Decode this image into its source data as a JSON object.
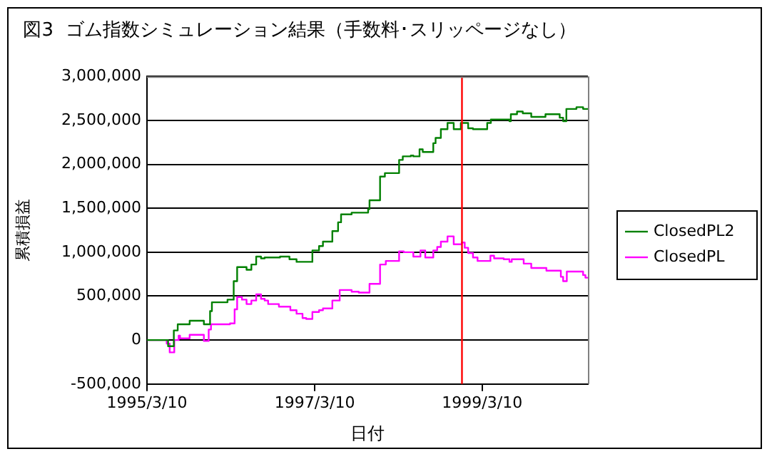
{
  "chart_data": {
    "type": "step",
    "title": "図3  ゴム指数シミュレーション結果（手数料･スリッページなし）",
    "xlabel": "日付",
    "ylabel": "累積損益",
    "xlim": [
      "1995-03-10",
      "2000-06-13"
    ],
    "xticks": [
      {
        "value": "1995-03-10",
        "label": "1995/3/10"
      },
      {
        "value": "1997-03-10",
        "label": "1997/3/10"
      },
      {
        "value": "1999-03-10",
        "label": "1999/3/10"
      }
    ],
    "ylim": [
      -500000,
      3000000
    ],
    "yticks": [
      {
        "value": -500000,
        "label": "-500,000"
      },
      {
        "value": 0,
        "label": "0"
      },
      {
        "value": 500000,
        "label": "500,000"
      },
      {
        "value": 1000000,
        "label": "1,000,000"
      },
      {
        "value": 1500000,
        "label": "1,500,000"
      },
      {
        "value": 2000000,
        "label": "2,000,000"
      },
      {
        "value": 2500000,
        "label": "2,500,000"
      },
      {
        "value": 3000000,
        "label": "3,000,000"
      }
    ],
    "grid": "y",
    "legend": "right",
    "marker": "none",
    "ref_lines": [
      {
        "axis": "x",
        "value": "1998-12-12",
        "color": "#ff0000"
      }
    ],
    "series": [
      {
        "name": "ClosedPL2",
        "color": "#008000",
        "x": [
          "1995-03-10",
          "1995-06-10",
          "1995-07-05",
          "1995-07-22",
          "1995-09-12",
          "1995-11-13",
          "1995-12-10",
          "1995-12-18",
          "1996-02-24",
          "1996-03-22",
          "1996-04-06",
          "1996-05-17",
          "1996-06-07",
          "1996-06-28",
          "1996-07-19",
          "1996-08-04",
          "1996-10-10",
          "1996-11-20",
          "1996-12-21",
          "1997-02-28",
          "1997-03-29",
          "1997-04-15",
          "1997-05-26",
          "1997-06-20",
          "1997-07-03",
          "1997-08-18",
          "1997-10-29",
          "1997-11-04",
          "1997-12-20",
          "1998-01-10",
          "1998-03-13",
          "1998-03-29",
          "1998-05-03",
          "1998-05-14",
          "1998-06-10",
          "1998-06-24",
          "1998-08-09",
          "1998-08-19",
          "1998-09-11",
          "1998-10-10",
          "1998-11-06",
          "1998-12-07",
          "1999-01-08",
          "1999-01-29",
          "1999-04-01",
          "1999-04-17",
          "1999-07-07",
          "1999-07-13",
          "1999-08-09",
          "1999-09-03",
          "1999-10-10",
          "1999-12-11",
          "2000-02-11",
          "2000-02-26",
          "2000-03-11",
          "2000-04-24",
          "2000-05-23",
          "2000-06-13"
        ],
        "values": [
          0,
          -70000,
          110000,
          180000,
          220000,
          180000,
          330000,
          430000,
          460000,
          670000,
          830000,
          800000,
          860000,
          950000,
          930000,
          940000,
          950000,
          920000,
          890000,
          1020000,
          1070000,
          1120000,
          1240000,
          1340000,
          1430000,
          1450000,
          1490000,
          1590000,
          1860000,
          1900000,
          2050000,
          2090000,
          2100000,
          2090000,
          2170000,
          2140000,
          2240000,
          2300000,
          2400000,
          2470000,
          2400000,
          2470000,
          2410000,
          2400000,
          2470000,
          2510000,
          2490000,
          2570000,
          2600000,
          2580000,
          2540000,
          2570000,
          2530000,
          2490000,
          2630000,
          2650000,
          2630000,
          2630000
        ]
      },
      {
        "name": "ClosedPL",
        "color": "#ff00ff",
        "x": [
          "1995-03-10",
          "1995-06-04",
          "1995-06-17",
          "1995-07-07",
          "1995-07-26",
          "1995-08-01",
          "1995-09-12",
          "1995-11-13",
          "1995-12-04",
          "1995-12-14",
          "1996-03-06",
          "1996-03-26",
          "1996-04-06",
          "1996-04-27",
          "1996-05-17",
          "1996-06-07",
          "1996-06-28",
          "1996-07-19",
          "1996-08-04",
          "1996-08-19",
          "1996-10-05",
          "1996-11-24",
          "1996-12-21",
          "1997-01-16",
          "1997-02-01",
          "1997-02-28",
          "1997-03-29",
          "1997-04-15",
          "1997-05-26",
          "1997-06-27",
          "1997-08-18",
          "1997-09-18",
          "1997-11-04",
          "1997-12-20",
          "1998-01-14",
          "1998-03-13",
          "1998-04-02",
          "1998-05-14",
          "1998-06-14",
          "1998-07-05",
          "1998-08-09",
          "1998-08-26",
          "1998-09-11",
          "1998-10-10",
          "1998-11-06",
          "1998-12-11",
          "1998-12-24",
          "1999-01-08",
          "1999-01-29",
          "1999-02-18",
          "1999-04-15",
          "1999-05-01",
          "1999-06-12",
          "1999-07-07",
          "1999-07-17",
          "1999-09-07",
          "1999-10-10",
          "1999-12-15",
          "2000-02-16",
          "2000-02-26",
          "2000-03-13",
          "2000-05-23",
          "2000-06-02",
          "2000-06-13"
        ],
        "values": [
          0,
          -40000,
          -140000,
          0,
          50000,
          20000,
          60000,
          -10000,
          120000,
          180000,
          190000,
          350000,
          490000,
          460000,
          410000,
          450000,
          520000,
          470000,
          450000,
          410000,
          380000,
          340000,
          300000,
          250000,
          240000,
          320000,
          340000,
          360000,
          450000,
          570000,
          550000,
          540000,
          640000,
          860000,
          900000,
          1010000,
          1000000,
          950000,
          1020000,
          940000,
          1020000,
          1060000,
          1120000,
          1180000,
          1090000,
          1110000,
          1050000,
          990000,
          940000,
          900000,
          960000,
          930000,
          920000,
          890000,
          920000,
          870000,
          820000,
          790000,
          720000,
          670000,
          780000,
          740000,
          710000,
          710000
        ]
      }
    ]
  }
}
